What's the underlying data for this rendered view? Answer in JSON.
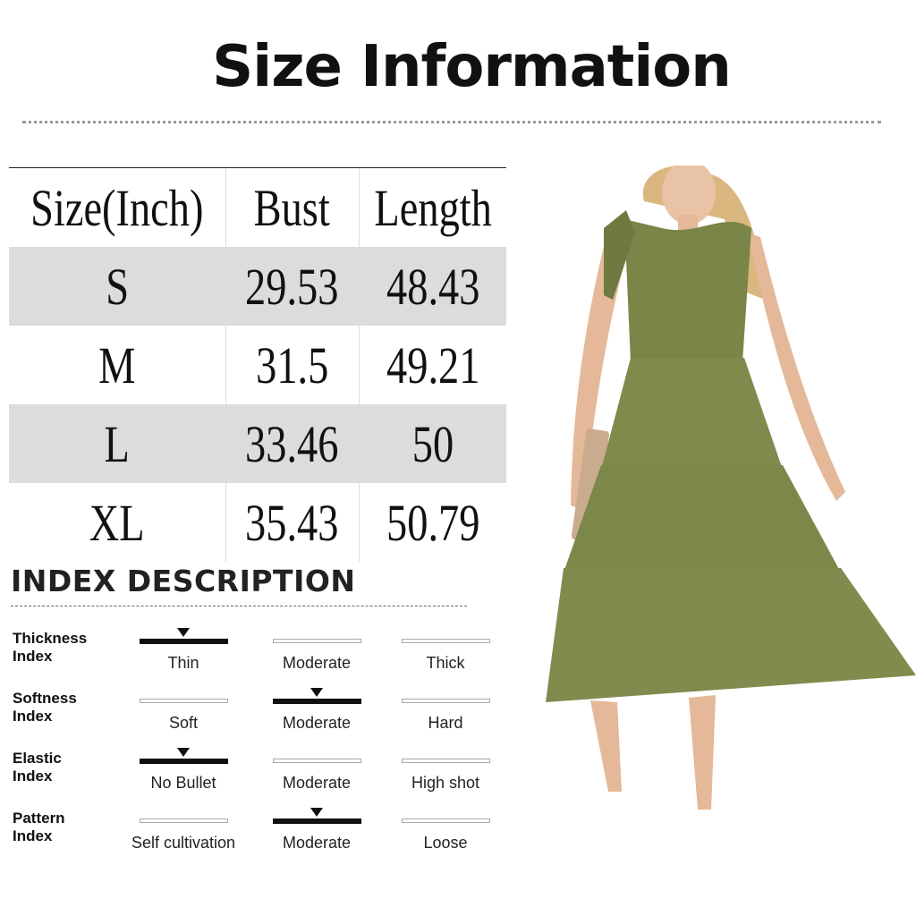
{
  "title": "Size Information",
  "table": {
    "headers": [
      "Size(Inch)",
      "Bust",
      "Length"
    ],
    "rows": [
      [
        "S",
        "29.53",
        "48.43"
      ],
      [
        "M",
        "31.5",
        "49.21"
      ],
      [
        "L",
        "33.46",
        "50"
      ],
      [
        "XL",
        "35.43",
        "50.79"
      ]
    ]
  },
  "index": {
    "title": "INDEX DESCRIPTION",
    "rows": [
      {
        "label": [
          "Thickness",
          "Index"
        ],
        "options": [
          "Thin",
          "Moderate",
          "Thick"
        ],
        "selected": 0
      },
      {
        "label": [
          "Softness",
          "Index"
        ],
        "options": [
          "Soft",
          "Moderate",
          "Hard"
        ],
        "selected": 1
      },
      {
        "label": [
          "Elastic",
          "Index"
        ],
        "options": [
          "No Bullet",
          "Moderate",
          "High shot"
        ],
        "selected": 0
      },
      {
        "label": [
          "Pattern",
          "Index"
        ],
        "options": [
          "Self cultivation",
          "Moderate",
          "Loose"
        ],
        "selected": 1
      }
    ]
  },
  "colors": {
    "dress": "#7f8a4c",
    "row_shade": "#dcdcdc"
  }
}
